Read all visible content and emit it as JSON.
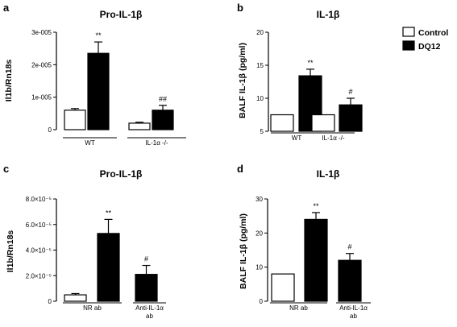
{
  "legend": {
    "items": [
      {
        "label": "Control",
        "fill": "#ffffff"
      },
      {
        "label": "DQ12",
        "fill": "#000000"
      }
    ]
  },
  "chart_data": [
    {
      "id": "a",
      "panel_letter": "a",
      "type": "bar",
      "title": "Pro-IL-1β",
      "ylabel": "Il1b/Rn18s",
      "ylim": [
        0,
        3e-05
      ],
      "yticks": [
        0,
        1e-05,
        2e-05,
        3e-05
      ],
      "yticklabels": [
        "0",
        "1e-005",
        "2e-005",
        "3e-005"
      ],
      "groups": [
        {
          "label": "WT",
          "values": [
            6e-06,
            2.35e-05
          ],
          "errors": [
            5e-07,
            3.5e-06
          ],
          "sig": [
            "",
            "**"
          ]
        },
        {
          "label": "IL-1α -/-",
          "values": [
            2e-06,
            6e-06
          ],
          "errors": [
            3e-07,
            1.5e-06
          ],
          "sig": [
            "",
            "##"
          ]
        }
      ],
      "series": [
        "Control",
        "DQ12"
      ]
    },
    {
      "id": "b",
      "panel_letter": "b",
      "type": "bar",
      "title": "IL-1β",
      "ylabel": "BALF IL-1β (pg/ml)",
      "ylim": [
        5,
        20
      ],
      "yticks": [
        5,
        10,
        15,
        20
      ],
      "yticklabels": [
        "5",
        "10",
        "15",
        "20"
      ],
      "groups": [
        {
          "label": "WT",
          "values": [
            7.5,
            13.4
          ],
          "errors": [
            0,
            1.0
          ],
          "sig": [
            "",
            "**"
          ]
        },
        {
          "label": "IL-1α -/-",
          "values": [
            7.5,
            9.0
          ],
          "errors": [
            0,
            1.0
          ],
          "sig": [
            "",
            "#"
          ]
        }
      ],
      "series": [
        "Control",
        "DQ12"
      ]
    },
    {
      "id": "c",
      "panel_letter": "c",
      "type": "bar",
      "title": "Pro-IL-1β",
      "ylabel": "Il1b/Rn18s",
      "ylim": [
        0,
        8e-05
      ],
      "yticks": [
        0,
        2e-05,
        4e-05,
        6e-05,
        8e-05
      ],
      "yticklabels": [
        "0",
        "2.0×10⁻⁵",
        "4.0×10⁻⁵",
        "6.0×10⁻⁵",
        "8.0×10⁻⁵"
      ],
      "groups": [
        {
          "label": "NR ab",
          "values": [
            5e-06,
            5.3e-05
          ],
          "errors": [
            1e-06,
            1.1e-05
          ],
          "sig": [
            "",
            "**"
          ]
        },
        {
          "label": "Anti-IL-1α ab",
          "label_lines": [
            "Anti-IL-1α",
            "ab"
          ],
          "values": [
            2.1e-05
          ],
          "errors": [
            7e-06
          ],
          "sig": [
            "#"
          ]
        }
      ],
      "series": [
        "Control",
        "DQ12"
      ]
    },
    {
      "id": "d",
      "panel_letter": "d",
      "type": "bar",
      "title": "IL-1β",
      "ylabel": "BALF IL-1β (pg/ml)",
      "ylim": [
        0,
        30
      ],
      "yticks": [
        0,
        10,
        20,
        30
      ],
      "yticklabels": [
        "0",
        "10",
        "20",
        "30"
      ],
      "groups": [
        {
          "label": "NR ab",
          "values": [
            8,
            24
          ],
          "errors": [
            0,
            2.0
          ],
          "sig": [
            "",
            "**"
          ]
        },
        {
          "label": "Anti-IL-1α ab",
          "label_lines": [
            "Anti-IL-1α",
            "ab"
          ],
          "values": [
            12
          ],
          "errors": [
            2.0
          ],
          "sig": [
            "#"
          ]
        }
      ],
      "series": [
        "Control",
        "DQ12"
      ]
    }
  ]
}
